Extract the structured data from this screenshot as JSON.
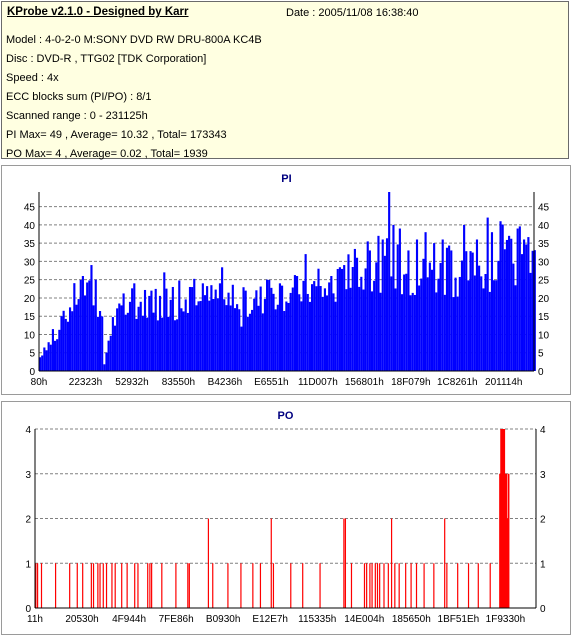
{
  "header": {
    "title": "KProbe v2.1.0 - Designed by Karr",
    "date": "Date : 2005/11/08 16:38:40",
    "lines": [
      "Model : 4-0-2-0 M:SONY    DVD RW DRU-800A  KC4B",
      "Disc : DVD-R , TTG02 [TDK Corporation]",
      "Speed : 4x",
      "ECC blocks sum (PI/PO) : 8/1",
      "Scanned range : 0 - 231125h",
      "PI Max= 49 , Average= 10.32 , Total= 173343",
      "PO Max= 4 , Average= 0.02 , Total= 1939"
    ]
  },
  "colors": {
    "pi_fill": "#0000ff",
    "po_fill": "#ff0000",
    "grid": "#808080",
    "axis": "#000000"
  },
  "chart_data": [
    {
      "type": "bar",
      "title": "PI",
      "ylim": [
        0,
        49
      ],
      "yticks": [
        0,
        5,
        10,
        15,
        20,
        25,
        30,
        35,
        40,
        45
      ],
      "xticks": [
        "80h",
        "22323h",
        "52932h",
        "83550h",
        "B4236h",
        "E6551h",
        "11D007h",
        "156801h",
        "18F079h",
        "1C8261h",
        "201114h"
      ],
      "xrange": [
        0,
        231125
      ],
      "grid": "horizontal dashed",
      "series": [
        {
          "step": 1000,
          "x_start": 0,
          "profile": [
            [
              0,
              4
            ],
            [
              2000,
              7
            ],
            [
              6000,
              9
            ],
            [
              10000,
              13
            ],
            [
              14000,
              18
            ],
            [
              17000,
              22
            ],
            [
              20000,
              24
            ],
            [
              22000,
              26
            ],
            [
              25000,
              23
            ],
            [
              27000,
              20
            ],
            [
              28000,
              16
            ],
            [
              29000,
              13
            ],
            [
              30000,
              2
            ],
            [
              32000,
              9
            ],
            [
              34000,
              14
            ],
            [
              38000,
              17
            ],
            [
              42000,
              18
            ],
            [
              50000,
              20
            ],
            [
              55000,
              19
            ],
            [
              60000,
              18
            ],
            [
              70000,
              19
            ],
            [
              80000,
              21
            ],
            [
              88000,
              20
            ],
            [
              92000,
              18
            ],
            [
              94000,
              15
            ],
            [
              96000,
              18
            ],
            [
              100000,
              20
            ],
            [
              110000,
              22
            ],
            [
              120000,
              23
            ],
            [
              125000,
              24
            ],
            [
              135000,
              23
            ],
            [
              140000,
              25
            ],
            [
              150000,
              27
            ],
            [
              160000,
              30
            ],
            [
              165000,
              29
            ],
            [
              175000,
              27
            ],
            [
              185000,
              28
            ],
            [
              190000,
              27
            ],
            [
              200000,
              29
            ],
            [
              210000,
              30
            ],
            [
              220000,
              30
            ],
            [
              226000,
              31
            ],
            [
              231125,
              31
            ]
          ],
          "peaks": [
            [
              10000,
              15
            ],
            [
              20000,
              26
            ],
            [
              24000,
              29
            ],
            [
              26000,
              25
            ],
            [
              44000,
              24
            ],
            [
              52000,
              22
            ],
            [
              58000,
              27
            ],
            [
              62000,
              23
            ],
            [
              70000,
              23
            ],
            [
              76000,
              24
            ],
            [
              84000,
              24
            ],
            [
              96000,
              22
            ],
            [
              106000,
              25
            ],
            [
              112000,
              24
            ],
            [
              120000,
              26
            ],
            [
              124000,
              32
            ],
            [
              130000,
              28
            ],
            [
              136000,
              26
            ],
            [
              142000,
              29
            ],
            [
              148000,
              31
            ],
            [
              154000,
              33
            ],
            [
              158000,
              37
            ],
            [
              160000,
              36
            ],
            [
              163000,
              49
            ],
            [
              165000,
              40
            ],
            [
              168000,
              39
            ],
            [
              172000,
              33
            ],
            [
              176000,
              36
            ],
            [
              180000,
              38
            ],
            [
              184000,
              35
            ],
            [
              188000,
              36
            ],
            [
              192000,
              33
            ],
            [
              198000,
              40
            ],
            [
              204000,
              36
            ],
            [
              209000,
              42
            ],
            [
              211000,
              38
            ],
            [
              215000,
              41
            ],
            [
              219000,
              37
            ],
            [
              223000,
              39
            ],
            [
              226000,
              36
            ]
          ]
        }
      ]
    },
    {
      "type": "bar",
      "title": "PO",
      "ylim": [
        0,
        4
      ],
      "yticks": [
        0,
        1,
        2,
        3,
        4
      ],
      "xticks": [
        "11h",
        "20530h",
        "4F944h",
        "7FE86h",
        "B0930h",
        "E12E7h",
        "115335h",
        "14E004h",
        "185650h",
        "1BF51Eh",
        "1F9330h"
      ],
      "xrange": [
        0,
        231125
      ],
      "grid": "horizontal dashed",
      "series": [
        {
          "points": [
            [
              400,
              1
            ],
            [
              1200,
              1
            ],
            [
              3000,
              1
            ],
            [
              9500,
              1
            ],
            [
              16000,
              1
            ],
            [
              19500,
              1
            ],
            [
              22000,
              1
            ],
            [
              26000,
              1
            ],
            [
              27000,
              1
            ],
            [
              29000,
              1
            ],
            [
              30000,
              1
            ],
            [
              31500,
              1
            ],
            [
              33000,
              1
            ],
            [
              35500,
              1
            ],
            [
              37000,
              1
            ],
            [
              40000,
              1
            ],
            [
              42500,
              1
            ],
            [
              46000,
              1
            ],
            [
              47500,
              1
            ],
            [
              52000,
              1
            ],
            [
              53000,
              1
            ],
            [
              53800,
              1
            ],
            [
              58500,
              1
            ],
            [
              65000,
              1
            ],
            [
              70500,
              1
            ],
            [
              71200,
              1
            ],
            [
              80000,
              2
            ],
            [
              82000,
              1
            ],
            [
              89000,
              1
            ],
            [
              95000,
              1
            ],
            [
              100500,
              1
            ],
            [
              104000,
              1
            ],
            [
              109000,
              2
            ],
            [
              110000,
              1
            ],
            [
              118000,
              1
            ],
            [
              123500,
              1
            ],
            [
              131500,
              1
            ],
            [
              142500,
              2
            ],
            [
              143200,
              2
            ],
            [
              146000,
              1
            ],
            [
              152000,
              1
            ],
            [
              153000,
              1
            ],
            [
              154500,
              1
            ],
            [
              155500,
              1
            ],
            [
              157000,
              1
            ],
            [
              158000,
              1
            ],
            [
              159000,
              1
            ],
            [
              161000,
              1
            ],
            [
              163000,
              1
            ],
            [
              164500,
              2
            ],
            [
              166000,
              1
            ],
            [
              168000,
              1
            ],
            [
              171000,
              1
            ],
            [
              173500,
              1
            ],
            [
              176000,
              1
            ],
            [
              179500,
              1
            ],
            [
              184000,
              1
            ],
            [
              189000,
              2
            ],
            [
              190000,
              1
            ],
            [
              195000,
              1
            ],
            [
              200000,
              1
            ],
            [
              204500,
              1
            ],
            [
              210000,
              1
            ],
            [
              214500,
              3
            ],
            [
              215000,
              4
            ],
            [
              215500,
              4
            ],
            [
              216000,
              4
            ],
            [
              216500,
              4
            ],
            [
              217000,
              3
            ],
            [
              217500,
              3
            ],
            [
              218000,
              2
            ],
            [
              218500,
              3
            ]
          ]
        }
      ]
    }
  ]
}
